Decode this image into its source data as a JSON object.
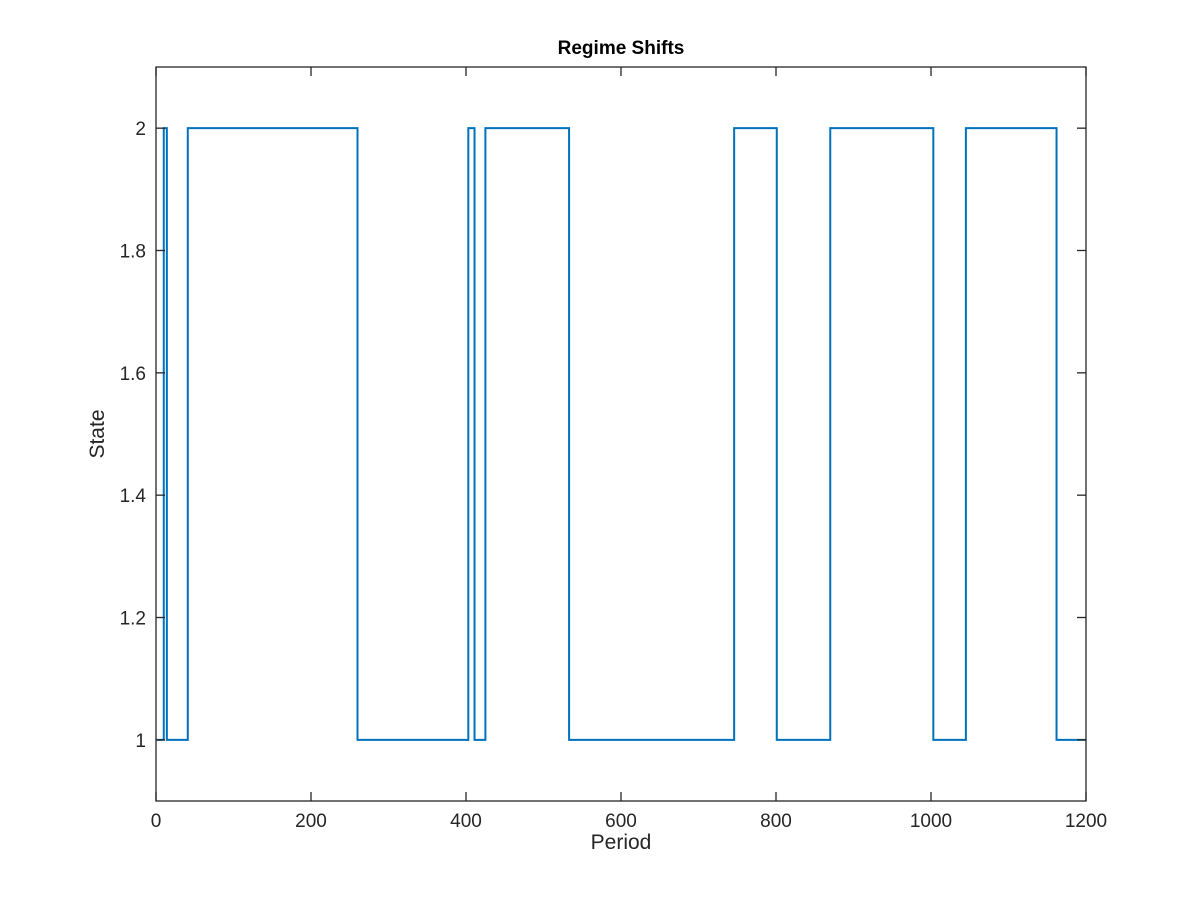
{
  "chart_data": {
    "type": "line",
    "title": "Regime Shifts",
    "xlabel": "Period",
    "ylabel": "State",
    "xlim": [
      0,
      1200
    ],
    "ylim": [
      0.9,
      2.1
    ],
    "xticks": [
      0,
      200,
      400,
      600,
      800,
      1000,
      1200
    ],
    "xtick_labels": [
      "0",
      "200",
      "400",
      "600",
      "800",
      "1000",
      "1200"
    ],
    "yticks": [
      1,
      1.2,
      1.4,
      1.6,
      1.8,
      2
    ],
    "ytick_labels": [
      "1",
      "1.2",
      "1.4",
      "1.6",
      "1.8",
      "2"
    ],
    "grid": false,
    "legend": "none",
    "series": [
      {
        "color": "#0072BD",
        "step": true,
        "x": [
          1,
          10,
          14,
          41,
          260,
          403,
          411,
          425,
          533,
          746,
          801,
          870,
          1003,
          1045,
          1162,
          1200
        ],
        "values": [
          1,
          2,
          1,
          2,
          1,
          2,
          1,
          2,
          1,
          2,
          1,
          2,
          1,
          2,
          1,
          1
        ]
      }
    ]
  }
}
